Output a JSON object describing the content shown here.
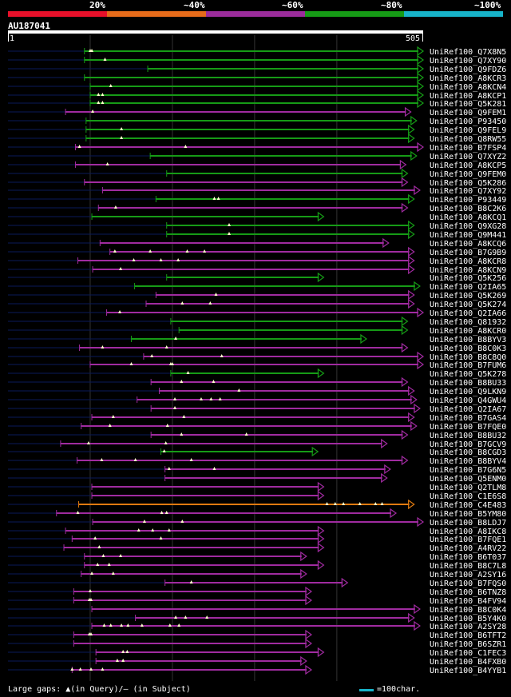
{
  "legend": {
    "segments": [
      {
        "label": "20%",
        "color": "#e8102a"
      },
      {
        "label": "~40%",
        "color": "#e66b1a"
      },
      {
        "label": "~60%",
        "color": "#9b2c9b"
      },
      {
        "label": "~80%",
        "color": "#169b16"
      },
      {
        "label": "~100%",
        "color": "#17b3c9"
      }
    ]
  },
  "query": {
    "name": "AU187041",
    "start": "1",
    "end": "505"
  },
  "colors": {
    "green": "#169b16",
    "purple": "#a02ba0",
    "orange": "#e07a10",
    "baseline": "#0a1a5a",
    "tri": "#ffffcc",
    "grid": "#333333"
  },
  "hits": [
    {
      "id": "UniRef100_Q7X8N5",
      "c": "green",
      "s": 93,
      "e": 505,
      "ls": 40,
      "tri": [
        100,
        102
      ]
    },
    {
      "id": "UniRef100_Q7XY90",
      "c": "green",
      "s": 93,
      "e": 505,
      "ls": 40,
      "tri": [
        118
      ]
    },
    {
      "id": "UniRef100_Q9FDZ6",
      "c": "green",
      "s": 170,
      "e": 505,
      "ls": 40,
      "tri": []
    },
    {
      "id": "UniRef100_A8KCR3",
      "c": "green",
      "s": 93,
      "e": 505,
      "ls": 40,
      "tri": []
    },
    {
      "id": "UniRef100_A8KCN4",
      "c": "green",
      "s": 100,
      "e": 505,
      "ls": 40,
      "tri": [
        125
      ]
    },
    {
      "id": "UniRef100_A8KCP1",
      "c": "green",
      "s": 100,
      "e": 505,
      "ls": 40,
      "tri": [
        110,
        115
      ]
    },
    {
      "id": "UniRef100_Q5K281",
      "c": "green",
      "s": 100,
      "e": 505,
      "ls": 40,
      "tri": [
        110,
        115
      ]
    },
    {
      "id": "UniRef100_Q9FEM1",
      "c": "purple",
      "s": 70,
      "e": 490,
      "ls": 40,
      "tri": [
        103
      ]
    },
    {
      "id": "UniRef100_P93450",
      "c": "green",
      "s": 95,
      "e": 497,
      "ls": 40,
      "tri": []
    },
    {
      "id": "UniRef100_Q9FEL9",
      "c": "green",
      "s": 95,
      "e": 494,
      "ls": 40,
      "tri": [
        138
      ]
    },
    {
      "id": "UniRef100_Q8RW55",
      "c": "green",
      "s": 95,
      "e": 494,
      "ls": 40,
      "tri": [
        138
      ]
    },
    {
      "id": "UniRef100_B7FSP4",
      "c": "purple",
      "s": 82,
      "e": 505,
      "ls": 40,
      "tri": [
        87,
        216
      ]
    },
    {
      "id": "UniRef100_Q7XYZ2",
      "c": "green",
      "s": 173,
      "e": 497,
      "ls": 40,
      "tri": []
    },
    {
      "id": "UniRef100_A8KCP5",
      "c": "purple",
      "s": 82,
      "e": 484,
      "ls": 40,
      "tri": [
        121
      ]
    },
    {
      "id": "UniRef100_Q9FEM0",
      "c": "green",
      "s": 193,
      "e": 486,
      "ls": 40,
      "tri": []
    },
    {
      "id": "UniRef100_Q5K286",
      "c": "purple",
      "s": 93,
      "e": 486,
      "ls": 40,
      "tri": []
    },
    {
      "id": "UniRef100_Q7XY92",
      "c": "purple",
      "s": 115,
      "e": 501,
      "ls": 40,
      "tri": []
    },
    {
      "id": "UniRef100_P93449",
      "c": "green",
      "s": 180,
      "e": 494,
      "ls": 40,
      "tri": [
        251,
        256
      ]
    },
    {
      "id": "UniRef100_B8C2K6",
      "c": "purple",
      "s": 110,
      "e": 486,
      "ls": 40,
      "tri": [
        131
      ]
    },
    {
      "id": "UniRef100_A8KCQ1",
      "c": "green",
      "s": 102,
      "e": 384,
      "ls": 40,
      "tri": []
    },
    {
      "id": "UniRef100_Q9XG28",
      "c": "green",
      "s": 193,
      "e": 494,
      "ls": 40,
      "tri": [
        269
      ]
    },
    {
      "id": "UniRef100_Q9M441",
      "c": "green",
      "s": 193,
      "e": 494,
      "ls": 40,
      "tri": [
        269
      ]
    },
    {
      "id": "UniRef100_A8KCQ6",
      "c": "purple",
      "s": 112,
      "e": 463,
      "ls": 40,
      "tri": []
    },
    {
      "id": "UniRef100_B7G9B9",
      "c": "purple",
      "s": 124,
      "e": 494,
      "ls": 40,
      "tri": [
        130,
        173,
        218,
        239
      ]
    },
    {
      "id": "UniRef100_A8KCR8",
      "c": "purple",
      "s": 85,
      "e": 494,
      "ls": 40,
      "tri": [
        153,
        186,
        207
      ]
    },
    {
      "id": "UniRef100_A8KCN9",
      "c": "purple",
      "s": 103,
      "e": 494,
      "ls": 40,
      "tri": [
        137
      ]
    },
    {
      "id": "UniRef100_Q5K256",
      "c": "green",
      "s": 193,
      "e": 384,
      "ls": 40,
      "tri": []
    },
    {
      "id": "UniRef100_Q2IA65",
      "c": "green",
      "s": 154,
      "e": 501,
      "ls": 40,
      "tri": []
    },
    {
      "id": "UniRef100_Q5K269",
      "c": "purple",
      "s": 180,
      "e": 494,
      "ls": 40,
      "tri": [
        253
      ]
    },
    {
      "id": "UniRef100_Q5K274",
      "c": "purple",
      "s": 168,
      "e": 494,
      "ls": 40,
      "tri": [
        212,
        246
      ]
    },
    {
      "id": "UniRef100_Q2IA66",
      "c": "purple",
      "s": 120,
      "e": 505,
      "ls": 40,
      "tri": [
        136
      ]
    },
    {
      "id": "UniRef100_Q81932",
      "c": "green",
      "s": 198,
      "e": 486,
      "ls": 40,
      "tri": []
    },
    {
      "id": "UniRef100_A8KCR0",
      "c": "green",
      "s": 208,
      "e": 486,
      "ls": 40,
      "tri": []
    },
    {
      "id": "UniRef100_B8BYV3",
      "c": "green",
      "s": 150,
      "e": 436,
      "ls": 40,
      "tri": [
        204
      ]
    },
    {
      "id": "UniRef100_B8C0K3",
      "c": "purple",
      "s": 87,
      "e": 486,
      "ls": 40,
      "tri": [
        115,
        193
      ]
    },
    {
      "id": "UniRef100_B8C8Q0",
      "c": "purple",
      "s": 165,
      "e": 505,
      "ls": 40,
      "tri": [
        175,
        260
      ]
    },
    {
      "id": "UniRef100_B7FUM6",
      "c": "purple",
      "s": 100,
      "e": 505,
      "ls": 40,
      "tri": [
        150,
        198,
        200
      ]
    },
    {
      "id": "UniRef100_Q5K278",
      "c": "green",
      "s": 198,
      "e": 384,
      "ls": 40,
      "tri": [
        219
      ]
    },
    {
      "id": "UniRef100_B8BU33",
      "c": "purple",
      "s": 174,
      "e": 486,
      "ls": 40,
      "tri": [
        211,
        250
      ]
    },
    {
      "id": "UniRef100_Q9LKN9",
      "c": "purple",
      "s": 184,
      "e": 494,
      "ls": 40,
      "tri": [
        281
      ]
    },
    {
      "id": "UniRef100_Q4GWU4",
      "c": "purple",
      "s": 157,
      "e": 497,
      "ls": 40,
      "tri": [
        203,
        235,
        247,
        258
      ]
    },
    {
      "id": "UniRef100_Q2IA67",
      "c": "purple",
      "s": 174,
      "e": 501,
      "ls": 40,
      "tri": [
        203
      ]
    },
    {
      "id": "UniRef100_B7GAS4",
      "c": "purple",
      "s": 102,
      "e": 494,
      "ls": 40,
      "tri": [
        128,
        214
      ]
    },
    {
      "id": "UniRef100_B7FQE0",
      "c": "purple",
      "s": 89,
      "e": 497,
      "ls": 40,
      "tri": [
        124,
        194
      ]
    },
    {
      "id": "UniRef100_B8BU32",
      "c": "purple",
      "s": 174,
      "e": 486,
      "ls": 40,
      "tri": [
        211,
        290
      ]
    },
    {
      "id": "UniRef100_B7GCV9",
      "c": "purple",
      "s": 64,
      "e": 461,
      "ls": 40,
      "tri": [
        98,
        192
      ]
    },
    {
      "id": "UniRef100_B8CGD3",
      "c": "green",
      "s": 186,
      "e": 377,
      "ls": 40,
      "tri": [
        190
      ]
    },
    {
      "id": "UniRef100_B8BYV4",
      "c": "purple",
      "s": 84,
      "e": 486,
      "ls": 40,
      "tri": [
        114,
        155,
        223
      ]
    },
    {
      "id": "UniRef100_B7G6N5",
      "c": "purple",
      "s": 191,
      "e": 465,
      "ls": 40,
      "tri": [
        196,
        251
      ]
    },
    {
      "id": "UniRef100_Q5ENM0",
      "c": "purple",
      "s": 191,
      "e": 461,
      "ls": 40,
      "tri": []
    },
    {
      "id": "UniRef100_Q2TLM8",
      "c": "purple",
      "s": 102,
      "e": 384,
      "ls": 40,
      "tri": []
    },
    {
      "id": "UniRef100_C1E6S8",
      "c": "purple",
      "s": 102,
      "e": 384,
      "ls": 40,
      "tri": []
    },
    {
      "id": "UniRef100_C4E483",
      "c": "orange",
      "s": 86,
      "e": 494,
      "ls": 40,
      "tri": [
        388,
        398,
        408,
        428,
        447,
        455
      ]
    },
    {
      "id": "UniRef100_B5YM80",
      "c": "purple",
      "s": 59,
      "e": 472,
      "ls": 40,
      "tri": [
        85,
        187,
        193
      ]
    },
    {
      "id": "UniRef100_B8LDJ7",
      "c": "purple",
      "s": 103,
      "e": 505,
      "ls": 40,
      "tri": [
        166,
        212
      ]
    },
    {
      "id": "UniRef100_A8IKC8",
      "c": "purple",
      "s": 70,
      "e": 384,
      "ls": 40,
      "tri": [
        159,
        176,
        196
      ]
    },
    {
      "id": "UniRef100_B7FQE1",
      "c": "purple",
      "s": 78,
      "e": 384,
      "ls": 40,
      "tri": [
        106,
        186
      ]
    },
    {
      "id": "UniRef100_A4RV22",
      "c": "purple",
      "s": 68,
      "e": 384,
      "ls": 40,
      "tri": [
        111
      ]
    },
    {
      "id": "UniRef100_B6T037",
      "c": "purple",
      "s": 93,
      "e": 363,
      "ls": 40,
      "tri": [
        116,
        137
      ]
    },
    {
      "id": "UniRef100_B8C7L8",
      "c": "purple",
      "s": 93,
      "e": 384,
      "ls": 40,
      "tri": [
        109,
        123
      ]
    },
    {
      "id": "UniRef100_A2SY16",
      "c": "purple",
      "s": 89,
      "e": 363,
      "ls": 40,
      "tri": [
        102,
        128
      ]
    },
    {
      "id": "UniRef100_B7FQS0",
      "c": "purple",
      "s": 191,
      "e": 413,
      "ls": 40,
      "tri": [
        223
      ]
    },
    {
      "id": "UniRef100_B6TNZ8",
      "c": "purple",
      "s": 80,
      "e": 369,
      "ls": 40,
      "tri": [
        100
      ]
    },
    {
      "id": "UniRef100_B4FV94",
      "c": "purple",
      "s": 80,
      "e": 369,
      "ls": 40,
      "tri": [
        99,
        101
      ]
    },
    {
      "id": "UniRef100_B8C0K4",
      "c": "purple",
      "s": 102,
      "e": 501,
      "ls": 40,
      "tri": []
    },
    {
      "id": "UniRef100_B5Y4K0",
      "c": "purple",
      "s": 155,
      "e": 494,
      "ls": 40,
      "tri": [
        204,
        216,
        242
      ]
    },
    {
      "id": "UniRef100_A2SY28",
      "c": "purple",
      "s": 102,
      "e": 501,
      "ls": 40,
      "tri": [
        117,
        125,
        138,
        146,
        163,
        197,
        208
      ]
    },
    {
      "id": "UniRef100_B6TFT2",
      "c": "purple",
      "s": 80,
      "e": 369,
      "ls": 40,
      "tri": [
        99,
        101
      ]
    },
    {
      "id": "UniRef100_B6SZR1",
      "c": "purple",
      "s": 80,
      "e": 369,
      "ls": 40,
      "tri": []
    },
    {
      "id": "UniRef100_C1FEC3",
      "c": "purple",
      "s": 107,
      "e": 384,
      "ls": 40,
      "tri": [
        140,
        145
      ]
    },
    {
      "id": "UniRef100_B4FXB0",
      "c": "purple",
      "s": 107,
      "e": 363,
      "ls": 40,
      "tri": [
        133,
        140
      ]
    },
    {
      "id": "UniRef100_B4YYB1",
      "c": "purple",
      "s": 78,
      "e": 369,
      "ls": 40,
      "tri": [
        78,
        88,
        101,
        115
      ]
    }
  ],
  "footer": {
    "note": "Large gaps: ▲(in Query)/— (in Subject)",
    "scale": "=100char."
  }
}
